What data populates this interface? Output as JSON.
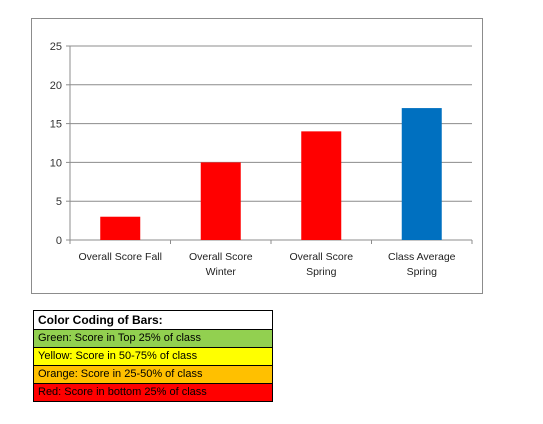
{
  "chart_data": {
    "type": "bar",
    "categories": [
      [
        "Overall Score Fall"
      ],
      [
        "Overall Score",
        "Winter"
      ],
      [
        "Overall Score",
        "Spring"
      ],
      [
        "Class Average",
        "Spring"
      ]
    ],
    "values": [
      3,
      10,
      14,
      17
    ],
    "bar_colors": [
      "#ff0000",
      "#ff0000",
      "#ff0000",
      "#0070c0"
    ],
    "ylim": [
      0,
      25
    ],
    "yticks": [
      0,
      5,
      10,
      15,
      20,
      25
    ],
    "grid": true,
    "title": "",
    "xlabel": "",
    "ylabel": ""
  },
  "legend": {
    "title": "Color Coding of Bars:",
    "items": [
      {
        "label": "Green: Score in Top 25% of class",
        "color": "#92d050"
      },
      {
        "label": "Yellow: Score in 50-75% of class",
        "color": "#ffff00"
      },
      {
        "label": "Orange: Score in 25-50% of class",
        "color": "#ffc000"
      },
      {
        "label": "Red: Score in bottom 25% of class",
        "color": "#ff0000"
      }
    ]
  }
}
